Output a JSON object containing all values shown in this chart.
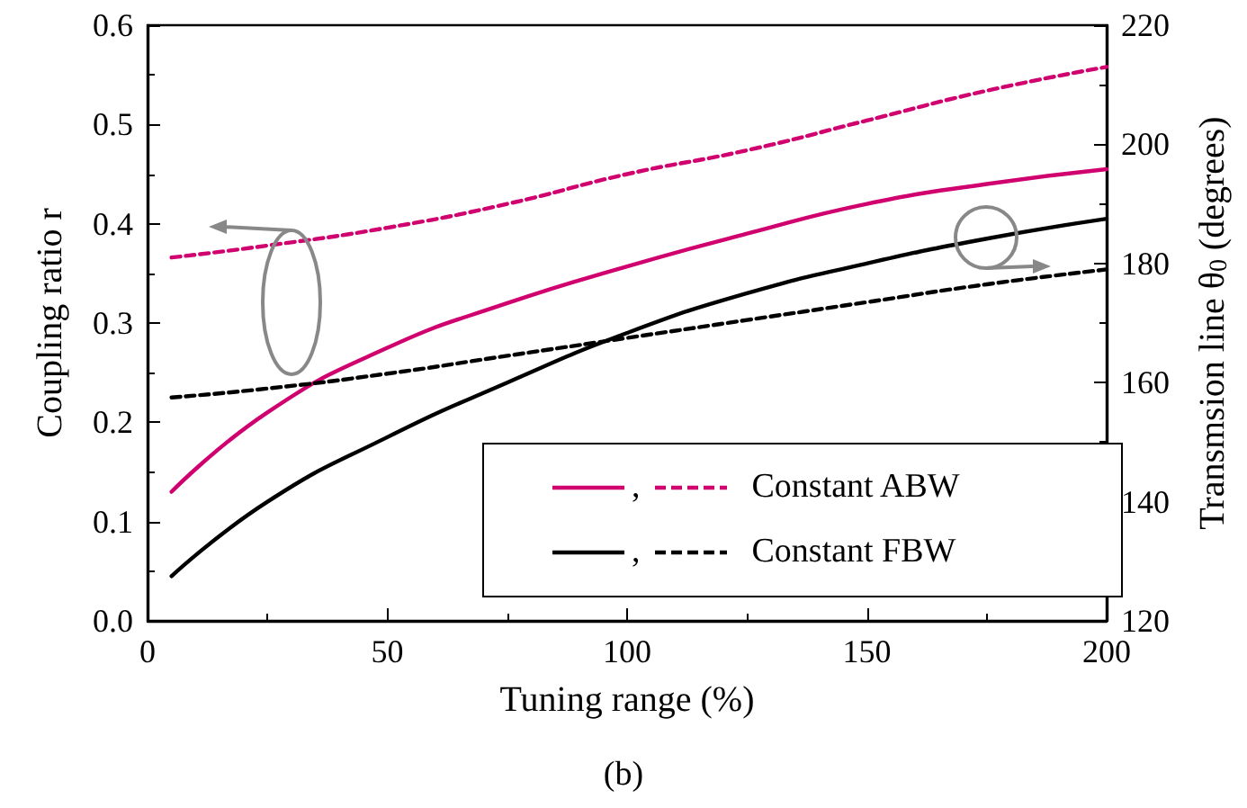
{
  "chart_data": {
    "type": "line",
    "xlabel": "Tuning range (%)",
    "ylabel": "Coupling ratio r",
    "y2label": "Transmsion line θ$_{0}$ (degrees)",
    "x": [
      5,
      25,
      50,
      75,
      100,
      125,
      150,
      175,
      200
    ],
    "xlim": [
      0,
      200
    ],
    "xticks": [
      0,
      50,
      100,
      150,
      200
    ],
    "ylim": [
      0,
      0.6
    ],
    "yticks": [
      {
        "value": 0,
        "label": "0.0"
      },
      0.1,
      0.2,
      0.3,
      0.4,
      0.5,
      0.6
    ],
    "y2lim": [
      120,
      220
    ],
    "y2ticks": [
      120,
      140,
      160,
      180,
      200,
      220
    ],
    "grid": false,
    "legend": "bottom right",
    "marker": "none",
    "series": [
      {
        "name": "Constant ABW",
        "color": "#d0006f",
        "line_style": "solid",
        "values": [
          0.13,
          0.21,
          0.275,
          0.32,
          0.357,
          0.39,
          0.42,
          0.44,
          0.455
        ]
      },
      {
        "name": "Constant FBW",
        "color": "#000000",
        "line_style": "solid",
        "values": [
          0.045,
          0.12,
          0.185,
          0.24,
          0.29,
          0.33,
          0.36,
          0.385,
          0.405
        ]
      },
      {
        "color": "#d0006f",
        "line_style": "dashed",
        "axis": "y2",
        "values": [
          181,
          183,
          186,
          190,
          195,
          199,
          204,
          209,
          213
        ]
      },
      {
        "color": "#000000",
        "line_style": "dashed",
        "axis": "y2",
        "values": [
          157.5,
          159,
          161.5,
          164.5,
          167.5,
          170.5,
          173.5,
          176.5,
          179
        ]
      }
    ],
    "annotations": [
      ",",
      "(b)"
    ]
  }
}
